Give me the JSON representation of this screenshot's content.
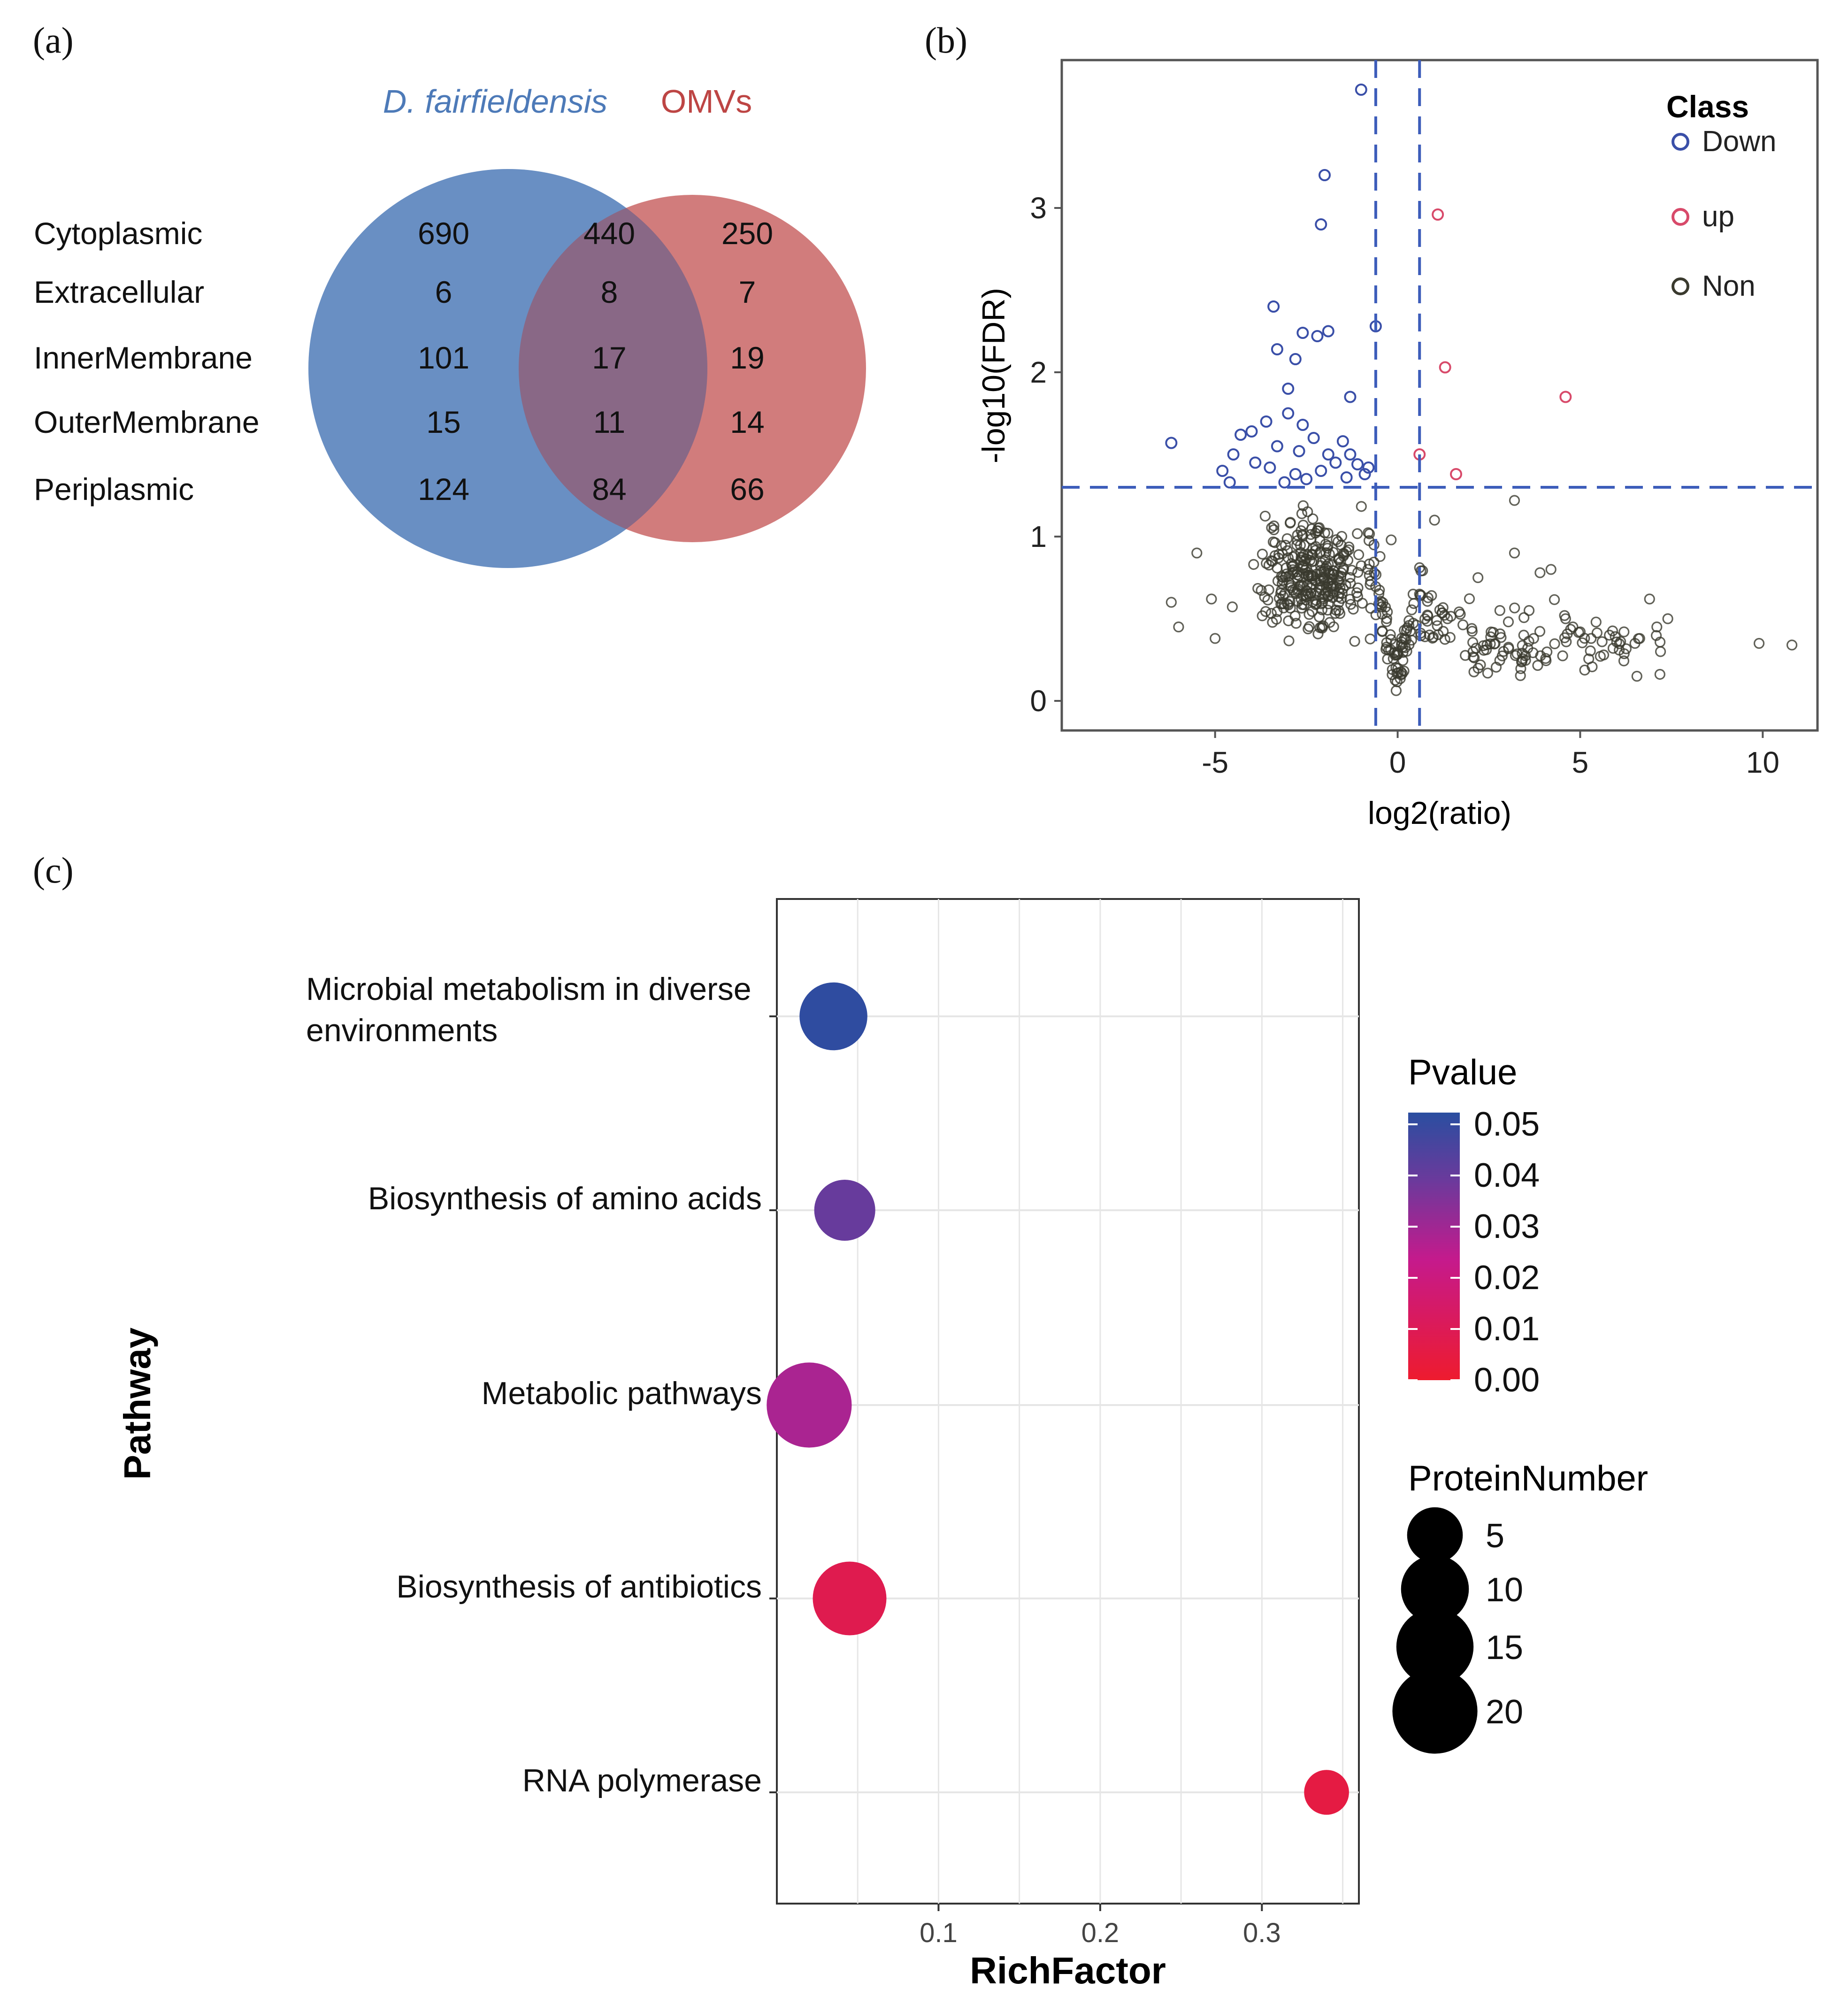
{
  "panel_labels": {
    "a": "(a)",
    "b": "(b)",
    "c": "(c)"
  },
  "colors": {
    "venn_left": "#4d7ab8",
    "venn_right": "#bd4544",
    "down": "#3a4fa8",
    "up": "#d84a6a",
    "non": "#3a3a2e",
    "threshold": "#3d5dba",
    "grid": "#e6e6e6"
  },
  "chart_data": [
    {
      "type": "venn",
      "sets": [
        {
          "name": "D. fairfieldensis",
          "color": "#4d7ab8"
        },
        {
          "name": "OMVs",
          "color": "#bd4544"
        }
      ],
      "categories": [
        "Cytoplasmic",
        "Extracellular",
        "InnerMembrane",
        "OuterMembrane",
        "Periplasmic"
      ],
      "left_only": [
        "690",
        "6",
        "101",
        "15",
        "124"
      ],
      "shared": [
        "440",
        "8",
        "17",
        "11",
        "84"
      ],
      "right_only": [
        "250",
        "7",
        "19",
        "14",
        "66"
      ]
    },
    {
      "type": "scatter",
      "xlabel": "log2(ratio)",
      "ylabel": "-log10(FDR)",
      "xlim": [
        -9.2,
        11.5
      ],
      "ylim": [
        -0.18,
        3.9
      ],
      "x_ticks": [
        "-5",
        "0",
        "5",
        "10"
      ],
      "y_ticks": [
        "0",
        "1",
        "2",
        "3"
      ],
      "thresholds": {
        "x": [
          -0.6,
          0.6
        ],
        "y": 1.3
      },
      "legend_title": "Class",
      "legend": [
        {
          "label": "Down",
          "key": "down"
        },
        {
          "label": "up",
          "key": "up"
        },
        {
          "label": "Non",
          "key": "non"
        }
      ],
      "up_points": [
        [
          1.1,
          2.96
        ],
        [
          1.3,
          2.03
        ],
        [
          4.6,
          1.85
        ],
        [
          0.6,
          1.5
        ],
        [
          1.6,
          1.38
        ]
      ],
      "down_points": [
        [
          -1.0,
          3.72
        ],
        [
          -2.0,
          3.2
        ],
        [
          -2.1,
          2.9
        ],
        [
          -3.4,
          2.4
        ],
        [
          -3.3,
          2.14
        ],
        [
          -2.8,
          2.08
        ],
        [
          -2.6,
          2.24
        ],
        [
          -2.2,
          2.22
        ],
        [
          -1.9,
          2.25
        ],
        [
          -0.6,
          2.28
        ],
        [
          -3.0,
          1.9
        ],
        [
          -1.3,
          1.85
        ],
        [
          -3.0,
          1.75
        ],
        [
          -2.6,
          1.68
        ],
        [
          -4.3,
          1.62
        ],
        [
          -4.0,
          1.64
        ],
        [
          -3.3,
          1.55
        ],
        [
          -2.3,
          1.6
        ],
        [
          -1.5,
          1.58
        ],
        [
          -1.3,
          1.5
        ],
        [
          -4.5,
          1.5
        ],
        [
          -4.8,
          1.4
        ],
        [
          -3.5,
          1.42
        ],
        [
          -2.8,
          1.38
        ],
        [
          -2.1,
          1.4
        ],
        [
          -1.7,
          1.45
        ],
        [
          -1.1,
          1.44
        ],
        [
          -6.2,
          1.57
        ],
        [
          -2.7,
          1.52
        ],
        [
          -3.9,
          1.45
        ],
        [
          -0.9,
          1.38
        ],
        [
          -2.5,
          1.35
        ],
        [
          -4.6,
          1.33
        ],
        [
          -1.4,
          1.36
        ],
        [
          -3.1,
          1.33
        ],
        [
          -0.8,
          1.42
        ],
        [
          -1.9,
          1.5
        ],
        [
          -3.6,
          1.7
        ]
      ],
      "non_seed": 20240611,
      "non_extra_points": [
        [
          2.8,
          0.55
        ],
        [
          3.2,
          0.9
        ],
        [
          3.6,
          0.55
        ],
        [
          4.2,
          0.8
        ],
        [
          4.6,
          0.5
        ],
        [
          5.3,
          0.38
        ],
        [
          5.6,
          0.36
        ],
        [
          5.9,
          0.32
        ],
        [
          6.2,
          0.42
        ],
        [
          6.5,
          0.35
        ],
        [
          6.9,
          0.62
        ],
        [
          7.1,
          0.45
        ],
        [
          7.4,
          0.5
        ],
        [
          7.2,
          0.3
        ],
        [
          9.9,
          0.35
        ],
        [
          10.8,
          0.34
        ],
        [
          3.2,
          1.22
        ],
        [
          2.2,
          0.75
        ],
        [
          3.9,
          0.78
        ],
        [
          4.8,
          0.45
        ],
        [
          5.0,
          0.42
        ],
        [
          5.8,
          0.4
        ],
        [
          -6.2,
          0.6
        ],
        [
          -5.1,
          0.62
        ],
        [
          -5.0,
          0.38
        ],
        [
          -5.5,
          0.9
        ],
        [
          -6.0,
          0.45
        ]
      ]
    },
    {
      "type": "bubble",
      "xlabel": "RichFactor",
      "ylabel": "Pathway",
      "xlim": [
        0.0,
        0.36
      ],
      "x_ticks": [
        0.1,
        0.2,
        0.3
      ],
      "x_tick_labels": [
        "0.1",
        "0.2",
        "0.3"
      ],
      "color_title": "Pvalue",
      "color_ticks": [
        "0.05",
        "0.04",
        "0.03",
        "0.02",
        "0.01",
        "0.00"
      ],
      "size_title": "ProteinNumber",
      "size_ticks": [
        "5",
        "10",
        "15",
        "20"
      ],
      "size_values": [
        5,
        10,
        15,
        20
      ],
      "pathways": [
        {
          "label_lines": [
            "Microbial metabolism in diverse",
            "environments"
          ],
          "rich_factor": 0.035,
          "pvalue": 0.049,
          "protein_number": 10
        },
        {
          "label_lines": [
            "Biosynthesis of amino acids"
          ],
          "rich_factor": 0.042,
          "pvalue": 0.038,
          "protein_number": 7
        },
        {
          "label_lines": [
            "Metabolic pathways"
          ],
          "rich_factor": 0.02,
          "pvalue": 0.027,
          "protein_number": 20
        },
        {
          "label_lines": [
            "Biosynthesis of antibiotics"
          ],
          "rich_factor": 0.045,
          "pvalue": 0.008,
          "protein_number": 13
        },
        {
          "label_lines": [
            "RNA polymerase"
          ],
          "rich_factor": 0.34,
          "pvalue": 0.005,
          "protein_number": 2
        }
      ]
    }
  ]
}
